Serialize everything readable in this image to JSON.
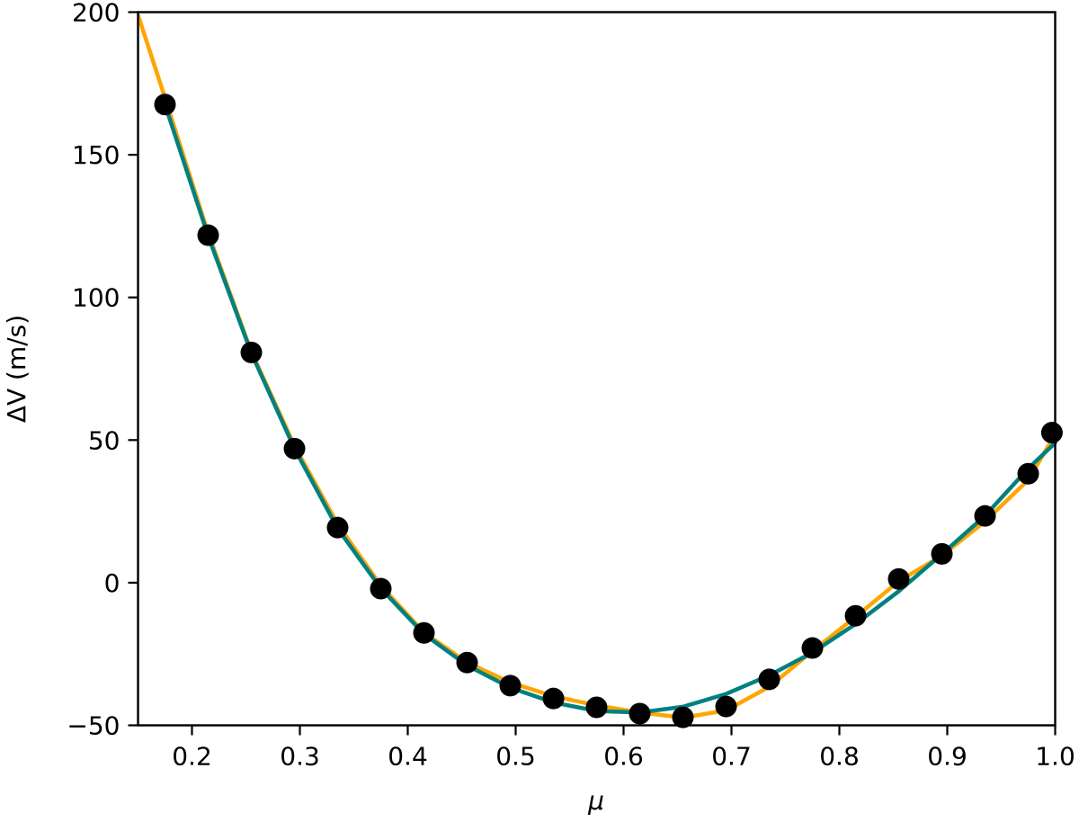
{
  "chart_data": {
    "type": "scatter",
    "title": "",
    "xlabel": "μ",
    "ylabel": "ΔV (m/s)",
    "xlim": [
      0.15,
      1.0
    ],
    "ylim": [
      -50,
      200
    ],
    "grid": false,
    "legend": null,
    "x_ticks": [
      0.2,
      0.3,
      0.4,
      0.5,
      0.6,
      0.7,
      0.8,
      0.9,
      1.0
    ],
    "x_tick_labels": [
      "0.2",
      "0.3",
      "0.4",
      "0.5",
      "0.6",
      "0.7",
      "0.8",
      "0.9",
      "1.0"
    ],
    "y_ticks": [
      -50,
      0,
      50,
      100,
      150,
      200
    ],
    "y_tick_labels": [
      "−50",
      "0",
      "50",
      "100",
      "150",
      "200"
    ],
    "series": [
      {
        "name": "data",
        "kind": "scatter",
        "color": "#000000",
        "x": [
          0.175,
          0.215,
          0.255,
          0.295,
          0.335,
          0.375,
          0.415,
          0.455,
          0.495,
          0.535,
          0.575,
          0.615,
          0.655,
          0.695,
          0.735,
          0.775,
          0.815,
          0.855,
          0.895,
          0.935,
          0.975,
          0.997
        ],
        "y": [
          167.6,
          121.8,
          80.7,
          47.0,
          19.3,
          -2.1,
          -17.6,
          -28.0,
          -36.1,
          -40.6,
          -43.7,
          -45.9,
          -47.2,
          -43.4,
          -33.9,
          -22.9,
          -11.6,
          1.3,
          10.1,
          23.4,
          38.2,
          52.6
        ]
      },
      {
        "name": "fit-orange",
        "kind": "line",
        "color": "#FFA500",
        "x": [
          0.15,
          0.175,
          0.215,
          0.255,
          0.295,
          0.335,
          0.375,
          0.415,
          0.455,
          0.495,
          0.535,
          0.575,
          0.615,
          0.655,
          0.695,
          0.735,
          0.775,
          0.815,
          0.855,
          0.895,
          0.935,
          0.975,
          1.0
        ],
        "y": [
          199.0,
          170.0,
          122.5,
          81.0,
          48.0,
          20.5,
          -1.0,
          -17.5,
          -28.0,
          -35.0,
          -39.8,
          -43.0,
          -45.5,
          -47.3,
          -44.8,
          -36.5,
          -24.0,
          -12.0,
          0.5,
          9.5,
          21.5,
          36.0,
          52.0
        ]
      },
      {
        "name": "fit-teal",
        "kind": "line",
        "color": "#008080",
        "x": [
          0.175,
          0.215,
          0.255,
          0.295,
          0.335,
          0.375,
          0.415,
          0.455,
          0.495,
          0.535,
          0.575,
          0.615,
          0.655,
          0.695,
          0.735,
          0.775,
          0.815,
          0.855,
          0.895,
          0.935,
          0.975,
          1.0
        ],
        "y": [
          167.6,
          121.5,
          80.5,
          47.0,
          19.0,
          -2.0,
          -18.0,
          -29.0,
          -36.8,
          -42.0,
          -45.0,
          -45.5,
          -43.5,
          -39.0,
          -32.5,
          -24.5,
          -14.5,
          -3.0,
          10.0,
          23.5,
          40.0,
          49.0
        ]
      }
    ]
  }
}
